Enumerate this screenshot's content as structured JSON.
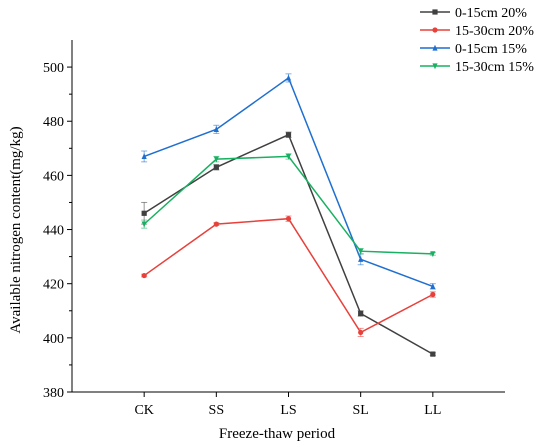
{
  "chart_data": {
    "type": "line",
    "xlabel": "Freeze-thaw period",
    "ylabel": "Available nitrogen content(mg/kg)",
    "categories": [
      "CK",
      "SS",
      "LS",
      "SL",
      "LL"
    ],
    "ylim": [
      380,
      510
    ],
    "yticks": [
      380,
      400,
      420,
      440,
      460,
      480,
      500
    ],
    "grid": false,
    "legend_position": "top-right",
    "series": [
      {
        "name": "0-15cm 20%",
        "color": "#404040",
        "marker": "square",
        "values": [
          446,
          463,
          475,
          409,
          394
        ],
        "errors": [
          4,
          1,
          1,
          1,
          0.5
        ]
      },
      {
        "name": "15-30cm 20%",
        "color": "#e8403a",
        "marker": "circle",
        "values": [
          423,
          442,
          444,
          402,
          416
        ],
        "errors": [
          0.5,
          0.5,
          1,
          1.5,
          1
        ]
      },
      {
        "name": "0-15cm 15%",
        "color": "#1f6fd1",
        "marker": "triangle-up",
        "values": [
          467,
          477,
          496,
          429,
          419
        ],
        "errors": [
          2,
          1.5,
          1.5,
          2,
          1
        ]
      },
      {
        "name": "15-30cm 15%",
        "color": "#19b061",
        "marker": "triangle-down",
        "values": [
          442,
          466,
          467,
          432,
          431
        ],
        "errors": [
          1.5,
          1,
          1,
          1,
          0.5
        ]
      }
    ]
  }
}
